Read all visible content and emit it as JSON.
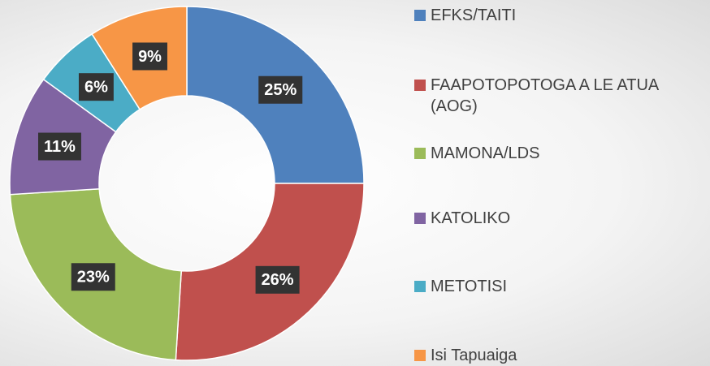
{
  "chart_data": {
    "type": "donut",
    "categories": [
      "EFKS/TAITI",
      "FAAPOTOPOTOGA A LE ATUA (AOG)",
      "MAMONA/LDS",
      "KATOLIKO",
      "METOTISI",
      "Isi Tapuaiga"
    ],
    "values": [
      25,
      26,
      23,
      11,
      6,
      9
    ],
    "value_labels": [
      "25%",
      "26%",
      "23%",
      "11%",
      "6%",
      "9%"
    ],
    "colors": [
      "#4f81bd",
      "#c0504d",
      "#9bbb59",
      "#8064a2",
      "#4bacc6",
      "#f79646"
    ],
    "legend": "right"
  }
}
